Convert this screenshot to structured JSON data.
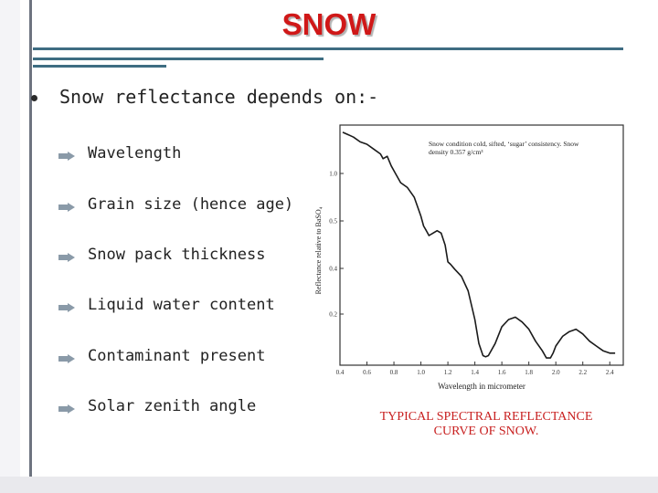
{
  "title": "SNOW",
  "main_bullet": "Snow reflectance depends on:-",
  "sub_bullets": [
    "Wavelength",
    "Grain size (hence age)",
    "Snow pack thickness",
    "Liquid water content",
    "Contaminant present",
    "Solar zenith angle"
  ],
  "colors": {
    "title": "#d01818",
    "caption": "#c82020",
    "rule": "#3e6d82"
  },
  "icons": {
    "main_bullet": "filled-circle-bullet",
    "sub_bullet": "arrow-bullet"
  },
  "caption_lines": [
    "TYPICAL SPECTRAL REFLECTANCE",
    "CURVE OF SNOW."
  ],
  "chart_data": {
    "type": "line",
    "xlabel": "Wavelength in micrometer",
    "ylabel": "Reflectance relative to BaSO₄",
    "annotation_lines": [
      "Snow condition cold, sifted, ‘sugar’ consistency. Snow",
      "density 0.357 g/cm³"
    ],
    "xlim": [
      0.4,
      2.5
    ],
    "ylim": [
      0,
      1.0
    ],
    "x_ticks": [
      "0.4",
      "0.6",
      "0.8",
      "1.0",
      "1.2",
      "1.4",
      "1.6",
      "1.8",
      "2.0",
      "2.2",
      "2.4"
    ],
    "y_ticks": [
      "0.2",
      "0.4",
      "0.5",
      "1.0"
    ],
    "grid": false,
    "series": [
      {
        "x": [
          0.42,
          0.46,
          0.5,
          0.55,
          0.6,
          0.65,
          0.7,
          0.72,
          0.75,
          0.78,
          0.81,
          0.85,
          0.9,
          0.95,
          1.0,
          1.02,
          1.04,
          1.06,
          1.09,
          1.12,
          1.15,
          1.18,
          1.2,
          1.22,
          1.25,
          1.3,
          1.35,
          1.4,
          1.43,
          1.46,
          1.48,
          1.5,
          1.55,
          1.6,
          1.65,
          1.7,
          1.75,
          1.8,
          1.85,
          1.9,
          1.93,
          1.96,
          1.98,
          2.0,
          2.05,
          2.1,
          2.15,
          2.2,
          2.25,
          2.3,
          2.35,
          2.4,
          2.44
        ],
        "y": [
          0.97,
          0.96,
          0.95,
          0.93,
          0.92,
          0.9,
          0.88,
          0.86,
          0.87,
          0.83,
          0.8,
          0.76,
          0.74,
          0.7,
          0.62,
          0.58,
          0.56,
          0.54,
          0.55,
          0.56,
          0.55,
          0.5,
          0.43,
          0.42,
          0.4,
          0.37,
          0.31,
          0.19,
          0.09,
          0.04,
          0.035,
          0.04,
          0.09,
          0.16,
          0.19,
          0.2,
          0.18,
          0.15,
          0.1,
          0.06,
          0.03,
          0.03,
          0.05,
          0.08,
          0.12,
          0.14,
          0.15,
          0.13,
          0.1,
          0.08,
          0.06,
          0.05,
          0.05
        ]
      }
    ]
  }
}
